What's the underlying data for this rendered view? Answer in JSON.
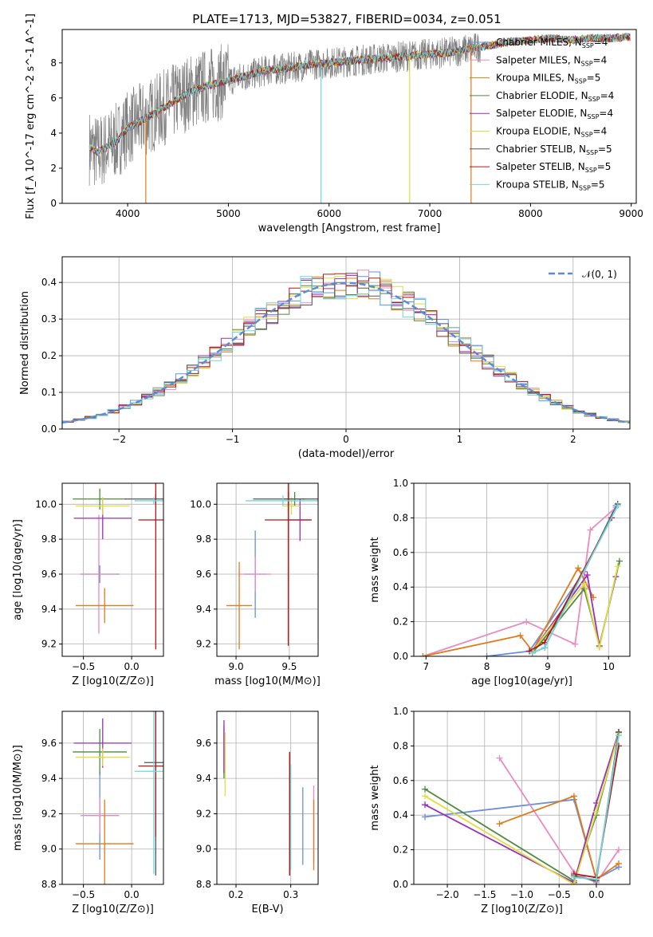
{
  "title": "PLATE=1713, MJD=53827, FIBERID=0034, z=0.051",
  "colors": {
    "Chabrier MILES": "#6a8fdc",
    "Salpeter MILES": "#e88bc0",
    "Kroupa MILES": "#e07b1a",
    "Chabrier ELODIE": "#4f8a3f",
    "Salpeter ELODIE": "#9a2fb5",
    "Kroupa ELODIE": "#dede40",
    "Chabrier STELIB": "#555555",
    "Salpeter STELIB": "#b01818",
    "Kroupa STELIB": "#6fd6de",
    "data": "#808080",
    "normal": "#5b8bd6"
  },
  "chart_data": [
    {
      "id": "spectrum",
      "type": "line",
      "xlabel": "wavelength [Angstrom, rest frame]",
      "ylabel": "Flux [f_λ 10^-17 erg cm^-2 s^-1 A^-1]",
      "xlim": [
        3350,
        9050
      ],
      "ylim": [
        0,
        9.9
      ],
      "xticks": [
        4000,
        5000,
        6000,
        7000,
        8000,
        9000
      ],
      "yticks": [
        0,
        2,
        4,
        6,
        8
      ],
      "legend_position": "right",
      "legend": [
        {
          "model": "Chabrier MILES",
          "nssp": 4
        },
        {
          "model": "Salpeter MILES",
          "nssp": 4
        },
        {
          "model": "Kroupa MILES",
          "nssp": 5
        },
        {
          "model": "Chabrier ELODIE",
          "nssp": 4
        },
        {
          "model": "Salpeter ELODIE",
          "nssp": 4
        },
        {
          "model": "Kroupa ELODIE",
          "nssp": 4
        },
        {
          "model": "Chabrier STELIB",
          "nssp": 5
        },
        {
          "model": "Salpeter STELIB",
          "nssp": 5
        },
        {
          "model": "Kroupa STELIB",
          "nssp": 5
        }
      ],
      "model_continuum": {
        "x": [
          3620,
          3700,
          3800,
          3900,
          4000,
          4200,
          4400,
          4600,
          4800,
          5000,
          5200,
          5400,
          5600,
          5800,
          6000,
          6200,
          6400,
          6600,
          6800,
          7000,
          7200,
          7400,
          7600,
          7800,
          8000,
          8200,
          8400,
          8600,
          8800,
          8990
        ],
        "y": [
          3.2,
          2.9,
          3.2,
          3.6,
          4.3,
          4.9,
          5.6,
          6.3,
          6.7,
          7.0,
          7.3,
          7.6,
          7.7,
          7.9,
          8.0,
          8.1,
          8.2,
          8.3,
          8.4,
          8.5,
          8.6,
          8.8,
          9.0,
          9.2,
          9.3,
          9.4,
          9.3,
          9.4,
          9.4,
          9.5
        ]
      },
      "drops": [
        {
          "x": 4180,
          "model": "Kroupa MILES"
        },
        {
          "x": 5920,
          "model": "Kroupa STELIB"
        },
        {
          "x": 6800,
          "model": "Kroupa ELODIE"
        },
        {
          "x": 7410,
          "model": "Kroupa MILES"
        }
      ]
    },
    {
      "id": "residuals",
      "type": "histogram",
      "xlabel": "(data-model)/error",
      "ylabel": "Normed distribution",
      "xlim": [
        -2.5,
        2.5
      ],
      "ylim": [
        0,
        0.47
      ],
      "xticks": [
        -2,
        -1,
        0,
        1,
        2
      ],
      "yticks": [
        0.0,
        0.1,
        0.2,
        0.3,
        0.4
      ],
      "legend": [
        "𝒩(0, 1)"
      ],
      "legend_position": "top-right",
      "bin_width": 0.1
    },
    {
      "id": "age_vs_Z",
      "type": "errorbar",
      "xlabel": "Z [log10(Z/Z⊙)]",
      "ylabel": "age [log10(age/yr)]",
      "xlim": [
        -0.72,
        0.33
      ],
      "ylim": [
        9.13,
        10.12
      ],
      "xticks": [
        -0.5,
        0.0
      ],
      "yticks": [
        9.2,
        9.4,
        9.6,
        9.8,
        10.0
      ],
      "points": [
        {
          "model": "Chabrier MILES",
          "x": -0.33,
          "xerr": 0.2,
          "y": 9.6,
          "yerr": 0.05
        },
        {
          "model": "Salpeter MILES",
          "x": -0.34,
          "xerr": 0.18,
          "y": 9.6,
          "yerr": 0.34
        },
        {
          "model": "Kroupa MILES",
          "x": -0.28,
          "xerr": 0.3,
          "y": 9.42,
          "yerr": 0.1
        },
        {
          "model": "Chabrier ELODIE",
          "x": -0.33,
          "xerr": 0.28,
          "y": 10.03,
          "yerr": 0.06
        },
        {
          "model": "Salpeter ELODIE",
          "x": -0.3,
          "xerr": 0.3,
          "y": 9.92,
          "yerr": 0.12
        },
        {
          "model": "Kroupa ELODIE",
          "x": -0.3,
          "xerr": 0.28,
          "y": 9.99,
          "yerr": 0.05
        },
        {
          "model": "Chabrier STELIB",
          "x": 0.25,
          "xerr": 0.32,
          "y": 10.03,
          "yerr": 0.03
        },
        {
          "model": "Salpeter STELIB",
          "x": 0.25,
          "xerr": 0.18,
          "y": 9.91,
          "yerr": 0.74
        },
        {
          "model": "Kroupa STELIB",
          "x": 0.23,
          "xerr": 0.2,
          "y": 10.02,
          "yerr": 0.02
        }
      ]
    },
    {
      "id": "age_vs_mass",
      "type": "errorbar",
      "xlabel": "mass [log10(M/M⊙)]",
      "xlim": [
        8.82,
        9.77
      ],
      "ylim": [
        9.13,
        10.12
      ],
      "xticks": [
        9.0,
        9.5
      ],
      "yticks": [
        9.2,
        9.4,
        9.6,
        9.8,
        10.0
      ],
      "points": [
        {
          "model": "Chabrier MILES",
          "x": 9.18,
          "xerr": 0.1,
          "y": 9.6,
          "yerr": 0.25
        },
        {
          "model": "Salpeter MILES",
          "x": 9.18,
          "xerr": 0.15,
          "y": 9.6,
          "yerr": 0.1
        },
        {
          "model": "Kroupa MILES",
          "x": 9.03,
          "xerr": 0.12,
          "y": 9.42,
          "yerr": 0.25
        },
        {
          "model": "Chabrier ELODIE",
          "x": 9.55,
          "xerr": 0.1,
          "y": 10.03,
          "yerr": 0.04
        },
        {
          "model": "Salpeter ELODIE",
          "x": 9.6,
          "xerr": 0.1,
          "y": 9.91,
          "yerr": 0.12
        },
        {
          "model": "Kroupa ELODIE",
          "x": 9.52,
          "xerr": 0.08,
          "y": 9.99,
          "yerr": 0.05
        },
        {
          "model": "Chabrier STELIB",
          "x": 9.49,
          "xerr": 0.33,
          "y": 10.03,
          "yerr": 0.04
        },
        {
          "model": "Salpeter STELIB",
          "x": 9.49,
          "xerr": 0.22,
          "y": 9.91,
          "yerr": 0.72
        },
        {
          "model": "Kroupa STELIB",
          "x": 9.44,
          "xerr": 0.35,
          "y": 10.02,
          "yerr": 0.03
        }
      ]
    },
    {
      "id": "weight_vs_age",
      "type": "line",
      "xlabel": "age [log10(age/yr)]",
      "ylabel": "mass weight",
      "xlim": [
        6.8,
        10.35
      ],
      "ylim": [
        0,
        1.0
      ],
      "xticks": [
        7,
        8,
        9,
        10
      ],
      "yticks": [
        0.0,
        0.2,
        0.4,
        0.6,
        0.8,
        1.0
      ],
      "series": [
        {
          "model": "Chabrier MILES",
          "x": [
            8.0,
            8.7,
            9.6,
            10.12
          ],
          "y": [
            0.0,
            0.03,
            0.49,
            0.87
          ]
        },
        {
          "model": "Salpeter MILES",
          "x": [
            6.95,
            8.65,
            9.45,
            9.7,
            10.12
          ],
          "y": [
            0.0,
            0.2,
            0.07,
            0.73,
            0.86
          ]
        },
        {
          "model": "Kroupa MILES",
          "x": [
            6.95,
            8.55,
            8.75,
            9.5,
            9.75
          ],
          "y": [
            0.0,
            0.12,
            0.03,
            0.51,
            0.34
          ]
        },
        {
          "model": "Chabrier ELODIE",
          "x": [
            8.75,
            9.6,
            9.85,
            10.18
          ],
          "y": [
            0.02,
            0.39,
            0.06,
            0.55
          ]
        },
        {
          "model": "Salpeter ELODIE",
          "x": [
            8.75,
            9.65,
            9.85,
            10.12
          ],
          "y": [
            0.03,
            0.47,
            0.06,
            0.46
          ]
        },
        {
          "model": "Kroupa ELODIE",
          "x": [
            8.75,
            9.6,
            9.85,
            10.15
          ],
          "y": [
            0.03,
            0.42,
            0.05,
            0.52
          ]
        },
        {
          "model": "Chabrier STELIB",
          "x": [
            8.75,
            8.95,
            10.15
          ],
          "y": [
            0.02,
            0.05,
            0.88
          ]
        },
        {
          "model": "Salpeter STELIB",
          "x": [
            8.7,
            8.95,
            10.05
          ],
          "y": [
            0.03,
            0.08,
            0.8
          ]
        },
        {
          "model": "Kroupa STELIB",
          "x": [
            8.75,
            8.95,
            10.15
          ],
          "y": [
            0.02,
            0.05,
            0.87
          ]
        }
      ]
    },
    {
      "id": "mass_vs_Z",
      "type": "errorbar",
      "xlabel": "Z [log10(Z/Z⊙)]",
      "ylabel": "mass [log10(M/M⊙)]",
      "xlim": [
        -0.72,
        0.33
      ],
      "ylim": [
        8.8,
        9.78
      ],
      "xticks": [
        -0.5,
        0.0
      ],
      "yticks": [
        8.8,
        9.0,
        9.2,
        9.4,
        9.6
      ],
      "points": [
        {
          "model": "Chabrier MILES",
          "x": -0.33,
          "xerr": 0.2,
          "y": 9.19,
          "yerr": 0.25
        },
        {
          "model": "Salpeter MILES",
          "x": -0.33,
          "xerr": 0.2,
          "y": 9.19,
          "yerr": 0.1
        },
        {
          "model": "Kroupa MILES",
          "x": -0.28,
          "xerr": 0.3,
          "y": 9.03,
          "yerr": 0.25
        },
        {
          "model": "Chabrier ELODIE",
          "x": -0.33,
          "xerr": 0.28,
          "y": 9.55,
          "yerr": 0.13
        },
        {
          "model": "Salpeter ELODIE",
          "x": -0.3,
          "xerr": 0.3,
          "y": 9.6,
          "yerr": 0.14
        },
        {
          "model": "Kroupa ELODIE",
          "x": -0.3,
          "xerr": 0.28,
          "y": 9.52,
          "yerr": 0.05
        },
        {
          "model": "Chabrier STELIB",
          "x": 0.25,
          "xerr": 0.12,
          "y": 9.49,
          "yerr": 0.64
        },
        {
          "model": "Salpeter STELIB",
          "x": 0.25,
          "xerr": 0.18,
          "y": 9.47,
          "yerr": 0.4
        },
        {
          "model": "Kroupa STELIB",
          "x": 0.23,
          "xerr": 0.2,
          "y": 9.44,
          "yerr": 0.58
        }
      ]
    },
    {
      "id": "mass_vs_ebv",
      "type": "errorbar",
      "xlabel": "E(B-V)",
      "xlim": [
        0.165,
        0.35
      ],
      "ylim": [
        8.8,
        9.78
      ],
      "xticks": [
        0.2,
        0.3
      ],
      "yticks": [
        8.8,
        9.0,
        9.2,
        9.4,
        9.6
      ],
      "points": [
        {
          "model": "Chabrier MILES",
          "x": 0.322,
          "y": 9.13,
          "yerr": 0.22
        },
        {
          "model": "Salpeter MILES",
          "x": 0.342,
          "y": 9.14,
          "yerr": 0.22
        },
        {
          "model": "Kroupa MILES",
          "x": 0.342,
          "y": 9.08,
          "yerr": 0.2
        },
        {
          "model": "Chabrier ELODIE",
          "x": 0.178,
          "y": 9.55,
          "yerr": 0.15
        },
        {
          "model": "Salpeter ELODIE",
          "x": 0.178,
          "y": 9.58,
          "yerr": 0.15
        },
        {
          "model": "Kroupa ELODIE",
          "x": 0.18,
          "y": 9.48,
          "yerr": 0.18
        },
        {
          "model": "Chabrier STELIB",
          "x": 0.298,
          "y": 9.2,
          "yerr": 0.35
        },
        {
          "model": "Salpeter STELIB",
          "x": 0.298,
          "y": 9.2,
          "yerr": 0.35
        },
        {
          "model": "Kroupa STELIB",
          "x": 0.3,
          "y": 9.18,
          "yerr": 0.3
        }
      ]
    },
    {
      "id": "weight_vs_Z",
      "type": "line",
      "xlabel": "Z [log10(Z/Z⊙)]",
      "ylabel": "mass weight",
      "xlim": [
        -2.45,
        0.45
      ],
      "ylim": [
        0,
        1.0
      ],
      "xticks": [
        -2.0,
        -1.5,
        -1.0,
        -0.5,
        0.0
      ],
      "yticks": [
        0.0,
        0.2,
        0.4,
        0.6,
        0.8,
        1.0
      ],
      "series": [
        {
          "model": "Chabrier MILES",
          "x": [
            -2.3,
            -0.3,
            0.0,
            0.3
          ],
          "y": [
            0.39,
            0.49,
            0.03,
            0.1
          ]
        },
        {
          "model": "Salpeter MILES",
          "x": [
            -1.3,
            -0.3,
            0.0,
            0.3
          ],
          "y": [
            0.73,
            0.07,
            0.01,
            0.2
          ]
        },
        {
          "model": "Kroupa MILES",
          "x": [
            -1.3,
            -0.3,
            0.0,
            0.3
          ],
          "y": [
            0.35,
            0.51,
            0.03,
            0.12
          ]
        },
        {
          "model": "Chabrier ELODIE",
          "x": [
            -2.3,
            -0.3,
            0.0,
            0.3
          ],
          "y": [
            0.55,
            0.02,
            0.4,
            0.88
          ]
        },
        {
          "model": "Salpeter ELODIE",
          "x": [
            -2.3,
            -0.3,
            0.0,
            0.3
          ],
          "y": [
            0.46,
            0.01,
            0.47,
            0.88
          ]
        },
        {
          "model": "Kroupa ELODIE",
          "x": [
            -2.3,
            -0.3,
            0.0,
            0.3
          ],
          "y": [
            0.51,
            0.0,
            0.42,
            0.87
          ]
        },
        {
          "model": "Chabrier STELIB",
          "x": [
            -0.3,
            0.0,
            0.3
          ],
          "y": [
            0.05,
            0.02,
            0.88
          ]
        },
        {
          "model": "Salpeter STELIB",
          "x": [
            -0.3,
            0.0,
            0.3
          ],
          "y": [
            0.06,
            0.04,
            0.8
          ]
        },
        {
          "model": "Kroupa STELIB",
          "x": [
            -0.3,
            0.0,
            0.3
          ],
          "y": [
            0.04,
            0.03,
            0.86
          ]
        }
      ]
    }
  ]
}
